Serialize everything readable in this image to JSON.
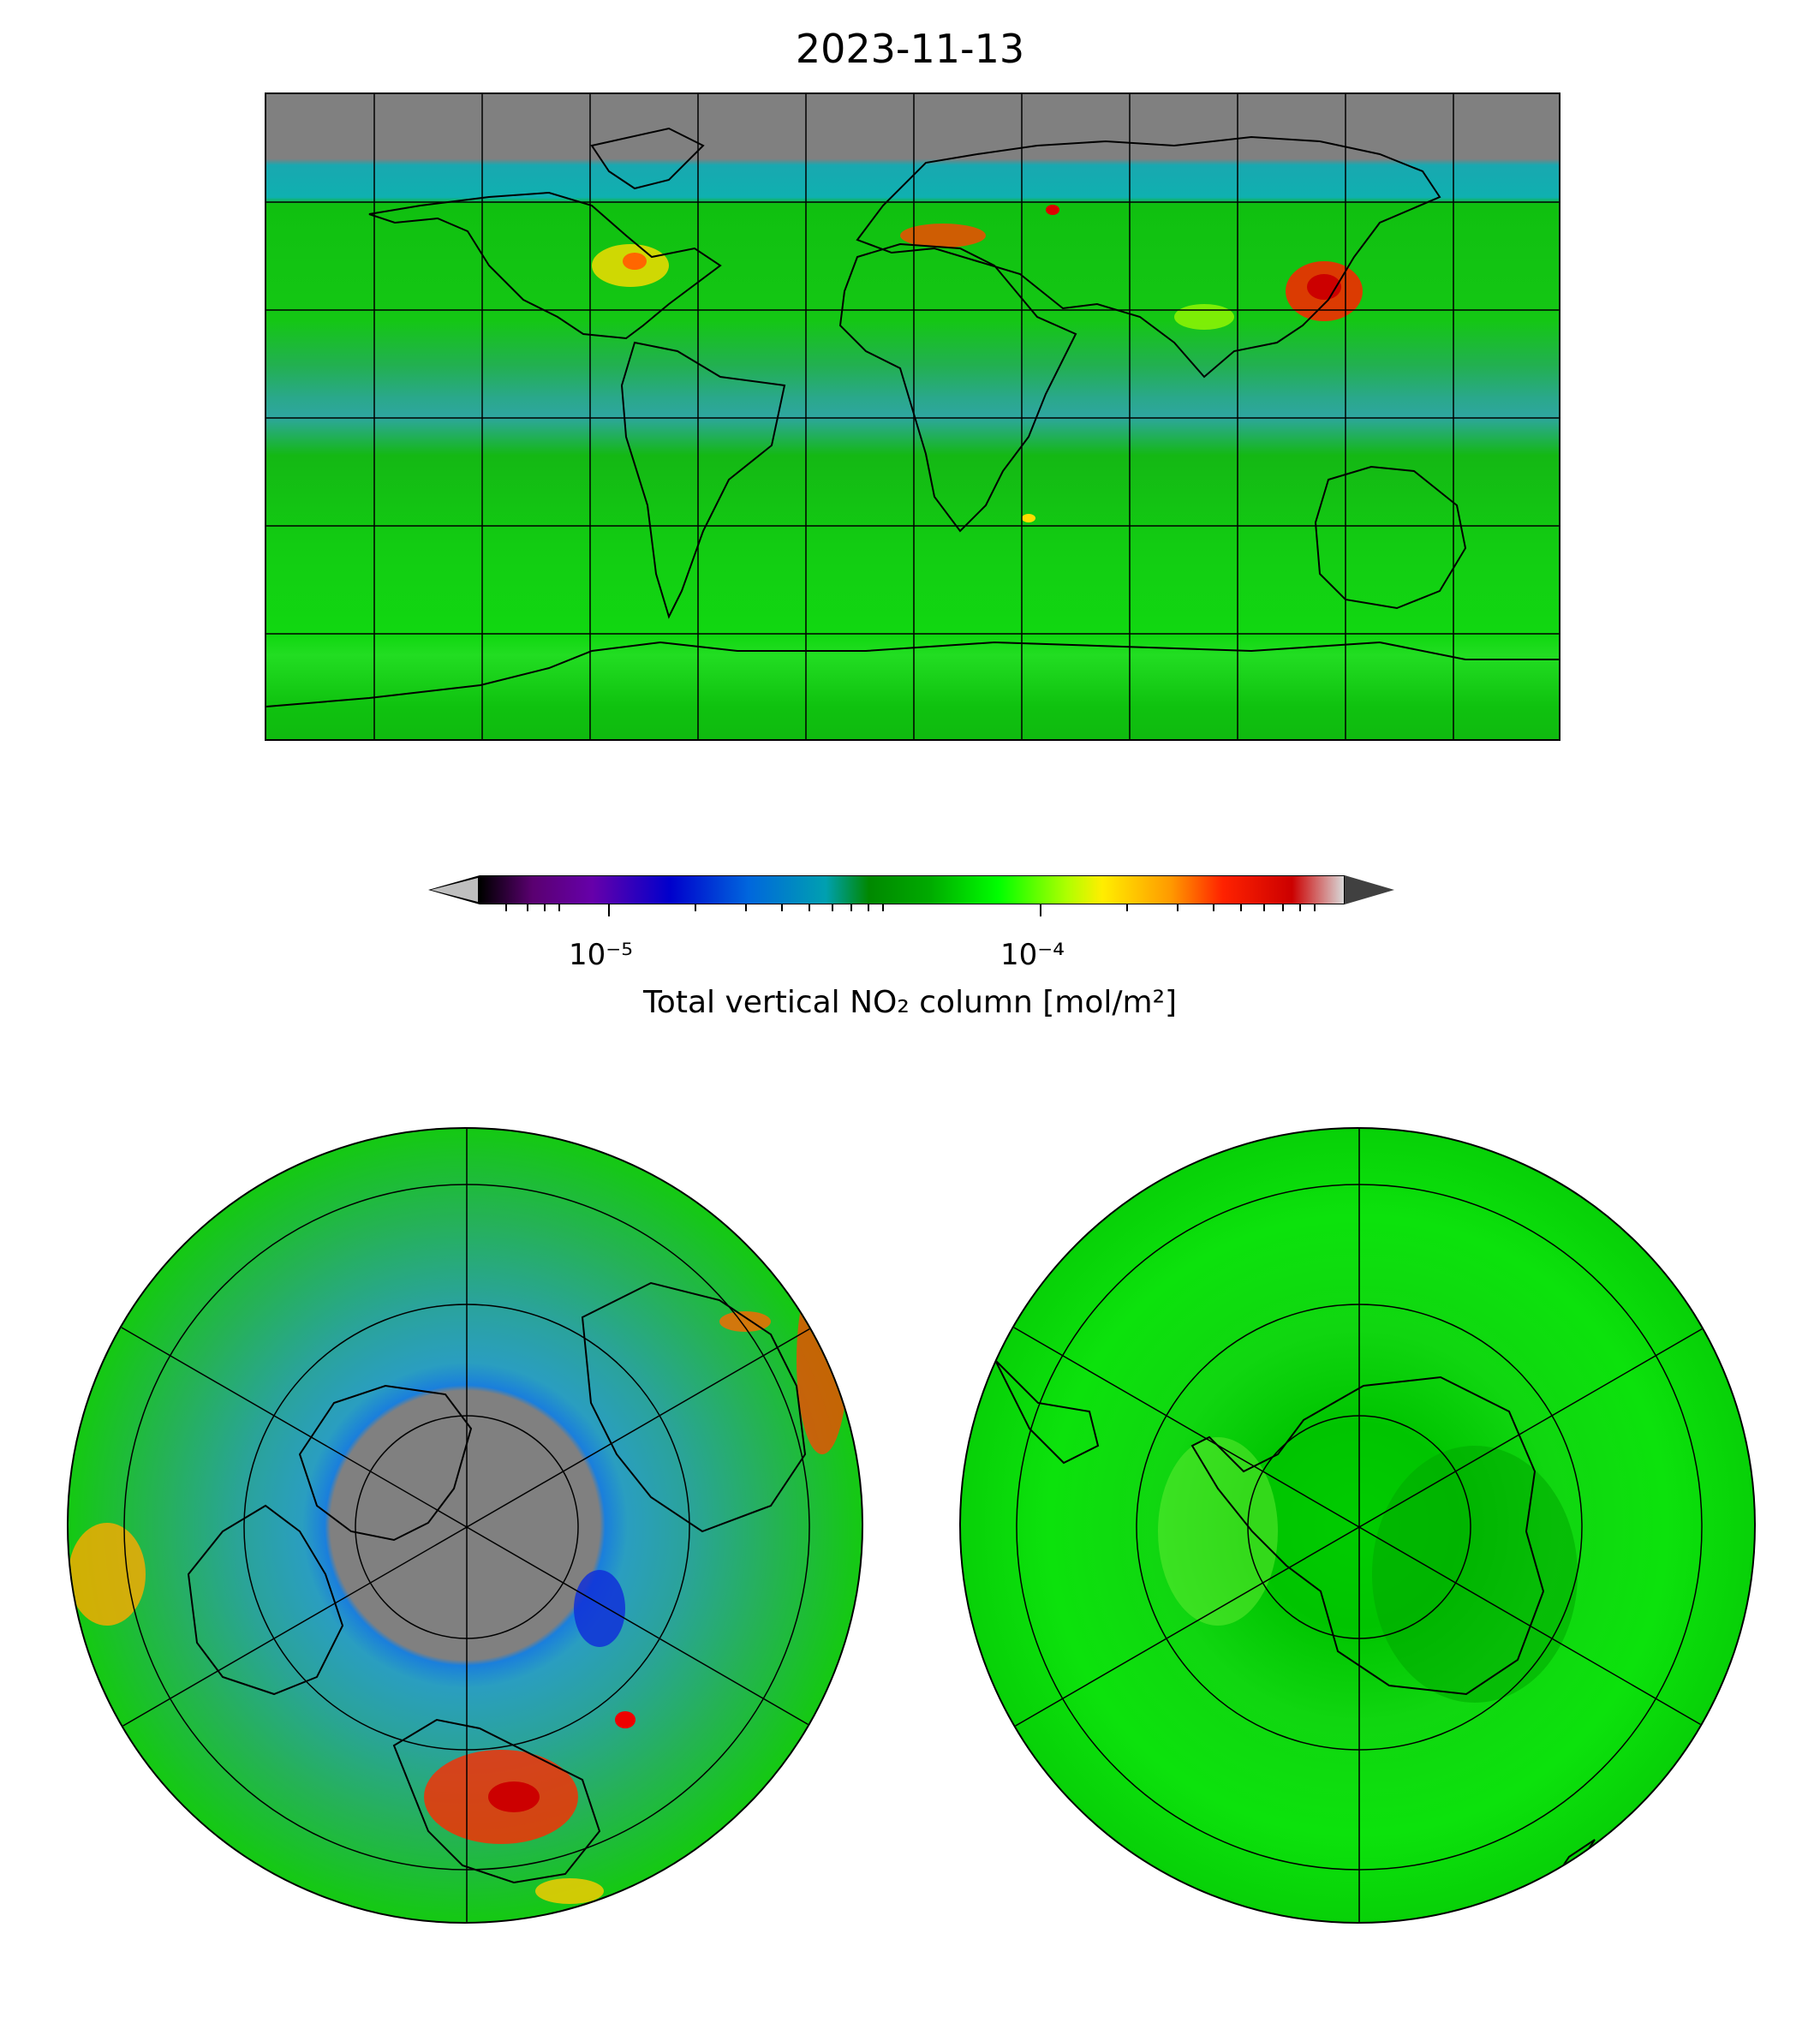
{
  "title": "2023-11-13",
  "colorbar": {
    "label": "Total vertical NO₂ column [mol/m²]",
    "scale": "log",
    "tick_labels": [
      "10⁻⁵",
      "10⁻⁴"
    ],
    "range": [
      5e-06,
      0.0005
    ],
    "colors": [
      "#000000",
      "#6600aa",
      "#0000cc",
      "#0066dd",
      "#00a0b0",
      "#008800",
      "#00ff00",
      "#ffee00",
      "#ff9900",
      "#cc0000",
      "#d8d8d8"
    ],
    "extend_min_color": "#bfbfbf",
    "extend_max_color": "#404040"
  },
  "maps": [
    {
      "name": "global",
      "projection": "plate-carree",
      "no_data_color": "#808080"
    },
    {
      "name": "north-polar",
      "projection": "north-polar-stereographic",
      "no_data_color": "#808080"
    },
    {
      "name": "south-polar",
      "projection": "south-polar-stereographic"
    }
  ]
}
